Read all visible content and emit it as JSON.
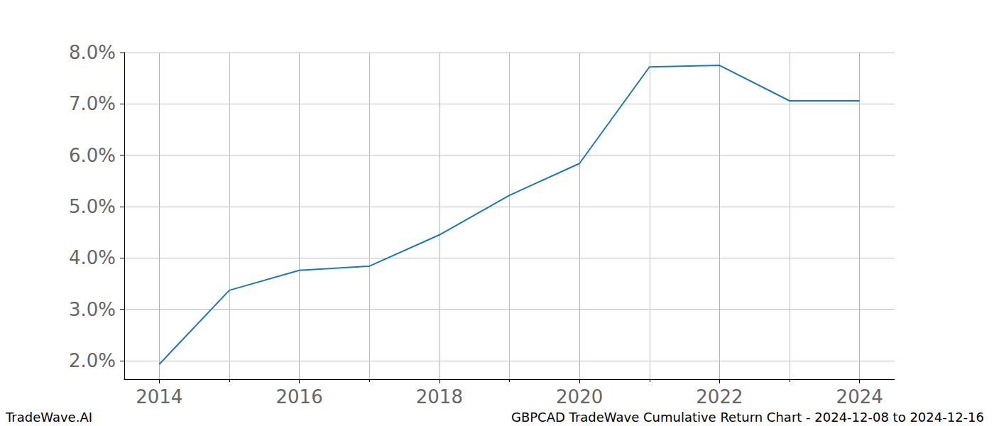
{
  "chart_data": {
    "type": "line",
    "x": [
      2014,
      2015,
      2016,
      2017,
      2018,
      2019,
      2020,
      2021,
      2022,
      2023,
      2024
    ],
    "values": [
      1.93,
      3.37,
      3.76,
      3.84,
      4.45,
      5.22,
      5.84,
      7.72,
      7.75,
      7.06,
      7.06
    ],
    "color": "#1f77b4",
    "xlim": [
      2013.5,
      2024.5
    ],
    "xticks": [
      2014,
      2016,
      2018,
      2020,
      2022,
      2024
    ],
    "ylim": [
      1.64,
      8.0
    ],
    "yticks": [
      {
        "value": 2,
        "label": "2.0%"
      },
      {
        "value": 3,
        "label": "3.0%"
      },
      {
        "value": 4,
        "label": "4.0%"
      },
      {
        "value": 5,
        "label": "5.0%"
      },
      {
        "value": 6,
        "label": "6.0%"
      },
      {
        "value": 7,
        "label": "7.0%"
      },
      {
        "value": 8,
        "label": "8.0%"
      }
    ],
    "grid": true,
    "annotations": [
      "TradeWave.AI",
      "GBPCAD TradeWave Cumulative Return Chart - 2024-12-08 to 2024-12-16"
    ]
  }
}
